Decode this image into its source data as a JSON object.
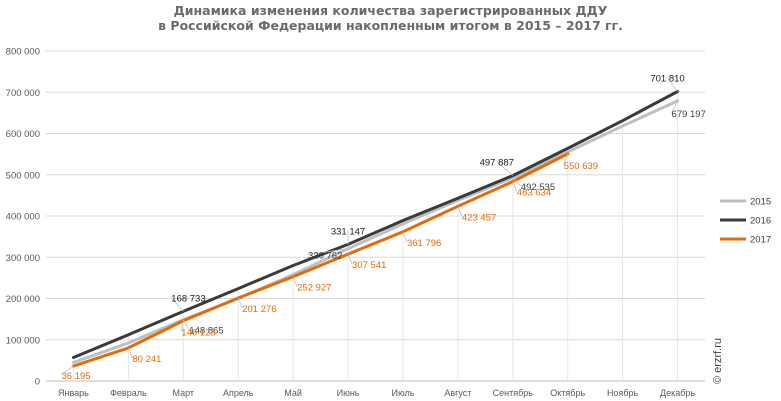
{
  "title_line1": "Динамика изменения количества зарегистрированных ДДУ",
  "title_line2": "в Российской Федерации накопленным итогом в 2015 – 2017 гг.",
  "watermark": "© erzrf.ru",
  "colors": {
    "2015": "#bfbfbf",
    "2016": "#3a3a3a",
    "2017": "#e36c09",
    "grid": "#d9d9d9",
    "axis_text": "#595959",
    "label_2015": "#404040",
    "label_2016": "#1a1a1a",
    "label_2017": "#e36c09"
  },
  "chart_data": {
    "type": "line",
    "title": "Динамика изменения количества зарегистрированных ДДУ в Российской Федерации накопленным итогом в 2015 – 2017 гг.",
    "categories": [
      "Январь",
      "Февраль",
      "Март",
      "Апрель",
      "Май",
      "Июнь",
      "Июль",
      "Август",
      "Сентябрь",
      "Октябрь",
      "Ноябрь",
      "Декабрь"
    ],
    "yticks": [
      "0",
      "100 000",
      "200 000",
      "300 000",
      "400 000",
      "500 000",
      "600 000",
      "700 000",
      "800 000"
    ],
    "ylim": [
      0,
      800000
    ],
    "legend_position": "right",
    "series": [
      {
        "name": "2015",
        "values": [
          45000,
          92000,
          148865,
          200000,
          258000,
          320762,
          381000,
          438000,
          492535,
          555000,
          618000,
          679197
        ],
        "labels": [
          null,
          null,
          "148 865",
          null,
          null,
          "320 762",
          null,
          null,
          "492 535",
          null,
          null,
          "679 197"
        ]
      },
      {
        "name": "2016",
        "values": [
          57000,
          112000,
          168733,
          224000,
          280000,
          331147,
          389000,
          443000,
          497887,
          564000,
          631000,
          701810
        ],
        "labels": [
          null,
          null,
          "168 733",
          null,
          null,
          "331 147",
          null,
          null,
          "497 887",
          null,
          null,
          "701 810"
        ]
      },
      {
        "name": "2017",
        "values": [
          36195,
          80241,
          146123,
          201276,
          252927,
          307541,
          361796,
          423457,
          483634,
          550639,
          null,
          null
        ],
        "labels": [
          "36 195",
          "80 241",
          "146 123",
          "201 276",
          "252 927",
          "307 541",
          "361 796",
          "423 457",
          "483 634",
          "550 639",
          null,
          null
        ]
      }
    ]
  }
}
